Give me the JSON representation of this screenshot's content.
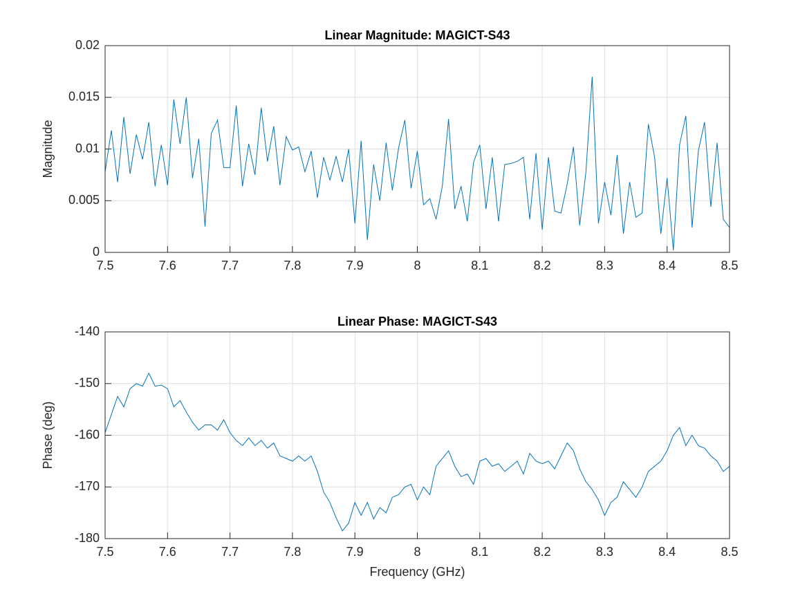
{
  "chart_data": [
    {
      "type": "line",
      "title": "Linear Magnitude: MAGICT-S43",
      "ylabel": "Magnitude",
      "color": "#0072bd",
      "grid": true,
      "xlim": [
        7.5,
        8.5
      ],
      "xticks": [
        7.5,
        7.6,
        7.7,
        7.8,
        7.9,
        8,
        8.1,
        8.2,
        8.3,
        8.4,
        8.5
      ],
      "ylim": [
        0,
        0.02
      ],
      "yticks": [
        0,
        0.005,
        0.01,
        0.015,
        0.02
      ],
      "x": [
        7.5,
        7.51,
        7.52,
        7.53,
        7.54,
        7.55,
        7.56,
        7.57,
        7.58,
        7.59,
        7.6,
        7.61,
        7.62,
        7.63,
        7.64,
        7.65,
        7.66,
        7.67,
        7.68,
        7.69,
        7.7,
        7.71,
        7.72,
        7.73,
        7.74,
        7.75,
        7.76,
        7.77,
        7.78,
        7.79,
        7.8,
        7.81,
        7.82,
        7.83,
        7.84,
        7.85,
        7.86,
        7.87,
        7.88,
        7.89,
        7.9,
        7.91,
        7.92,
        7.93,
        7.94,
        7.95,
        7.96,
        7.97,
        7.98,
        7.99,
        8,
        8.01,
        8.02,
        8.03,
        8.04,
        8.05,
        8.06,
        8.07,
        8.08,
        8.09,
        8.1,
        8.11,
        8.12,
        8.13,
        8.14,
        8.15,
        8.16,
        8.17,
        8.18,
        8.19,
        8.2,
        8.21,
        8.22,
        8.23,
        8.24,
        8.25,
        8.26,
        8.27,
        8.28,
        8.29,
        8.3,
        8.31,
        8.32,
        8.33,
        8.34,
        8.35,
        8.36,
        8.37,
        8.38,
        8.39,
        8.4,
        8.41,
        8.42,
        8.43,
        8.44,
        8.45,
        8.46,
        8.47,
        8.48,
        8.49,
        8.5
      ],
      "values": [
        0.0078,
        0.0118,
        0.0068,
        0.0131,
        0.0076,
        0.0114,
        0.009,
        0.0126,
        0.0064,
        0.0104,
        0.0065,
        0.0148,
        0.0105,
        0.015,
        0.0072,
        0.011,
        0.0025,
        0.0115,
        0.0128,
        0.0082,
        0.0082,
        0.0142,
        0.0064,
        0.0105,
        0.0075,
        0.014,
        0.0088,
        0.0122,
        0.0065,
        0.0112,
        0.0099,
        0.0102,
        0.0078,
        0.0098,
        0.0053,
        0.0092,
        0.007,
        0.0093,
        0.0068,
        0.01,
        0.0028,
        0.0108,
        0.0012,
        0.0085,
        0.005,
        0.0106,
        0.006,
        0.0101,
        0.0128,
        0.0062,
        0.0098,
        0.0046,
        0.0052,
        0.0032,
        0.0064,
        0.0129,
        0.0042,
        0.0064,
        0.003,
        0.0087,
        0.0104,
        0.0042,
        0.0092,
        0.003,
        0.0085,
        0.0086,
        0.0088,
        0.0092,
        0.0032,
        0.0096,
        0.0022,
        0.0092,
        0.004,
        0.0038,
        0.0066,
        0.0102,
        0.0026,
        0.0078,
        0.017,
        0.0028,
        0.0068,
        0.0036,
        0.0094,
        0.0018,
        0.0068,
        0.0034,
        0.0038,
        0.0124,
        0.0092,
        0.0018,
        0.0072,
        0.0002,
        0.0104,
        0.0132,
        0.0024,
        0.0098,
        0.0126,
        0.0044,
        0.0106,
        0.0032,
        0.0024
      ]
    },
    {
      "type": "line",
      "title": "Linear Phase: MAGICT-S43",
      "xlabel": "Frequency (GHz)",
      "ylabel": "Phase (deg)",
      "color": "#0072bd",
      "grid": true,
      "xlim": [
        7.5,
        8.5
      ],
      "xticks": [
        7.5,
        7.6,
        7.7,
        7.8,
        7.9,
        8,
        8.1,
        8.2,
        8.3,
        8.4,
        8.5
      ],
      "ylim": [
        -180,
        -140
      ],
      "yticks": [
        -180,
        -170,
        -160,
        -150,
        -140
      ],
      "x": [
        7.5,
        7.51,
        7.52,
        7.53,
        7.54,
        7.55,
        7.56,
        7.57,
        7.58,
        7.59,
        7.6,
        7.61,
        7.62,
        7.63,
        7.64,
        7.65,
        7.66,
        7.67,
        7.68,
        7.69,
        7.7,
        7.71,
        7.72,
        7.73,
        7.74,
        7.75,
        7.76,
        7.77,
        7.78,
        7.79,
        7.8,
        7.81,
        7.82,
        7.83,
        7.84,
        7.85,
        7.86,
        7.87,
        7.88,
        7.89,
        7.9,
        7.91,
        7.92,
        7.93,
        7.94,
        7.95,
        7.96,
        7.97,
        7.98,
        7.99,
        8,
        8.01,
        8.02,
        8.03,
        8.04,
        8.05,
        8.06,
        8.07,
        8.08,
        8.09,
        8.1,
        8.11,
        8.12,
        8.13,
        8.14,
        8.15,
        8.16,
        8.17,
        8.18,
        8.19,
        8.2,
        8.21,
        8.22,
        8.23,
        8.24,
        8.25,
        8.26,
        8.27,
        8.28,
        8.29,
        8.3,
        8.31,
        8.32,
        8.33,
        8.34,
        8.35,
        8.36,
        8.37,
        8.38,
        8.39,
        8.4,
        8.41,
        8.42,
        8.43,
        8.44,
        8.45,
        8.46,
        8.47,
        8.48,
        8.49,
        8.5
      ],
      "values": [
        -159.5,
        -156,
        -152.5,
        -154.5,
        -151,
        -150,
        -150.5,
        -148,
        -150.5,
        -150.3,
        -151,
        -154.5,
        -153.3,
        -155.5,
        -157.5,
        -159,
        -158,
        -158,
        -159,
        -157,
        -159.5,
        -161,
        -162,
        -160.5,
        -162,
        -161,
        -162.5,
        -161.5,
        -164,
        -164.5,
        -165,
        -164,
        -165,
        -164,
        -167,
        -171,
        -173,
        -176,
        -178.5,
        -177,
        -173,
        -175.5,
        -173,
        -176.2,
        -174,
        -175,
        -172,
        -171.5,
        -170,
        -169.5,
        -172.5,
        -170,
        -171.5,
        -166,
        -164.5,
        -163,
        -166,
        -168,
        -167.5,
        -169.5,
        -165,
        -164.5,
        -166,
        -165.5,
        -167,
        -166,
        -165,
        -167.5,
        -163.5,
        -165,
        -165.5,
        -165,
        -166.5,
        -164,
        -161.5,
        -163,
        -166.5,
        -169,
        -170.5,
        -172.5,
        -175.5,
        -173,
        -172,
        -169,
        -170.5,
        -172,
        -170,
        -167,
        -166,
        -165,
        -163,
        -160,
        -158.5,
        -162,
        -160,
        -162,
        -162.5,
        -164,
        -165,
        -167,
        -166
      ]
    }
  ]
}
